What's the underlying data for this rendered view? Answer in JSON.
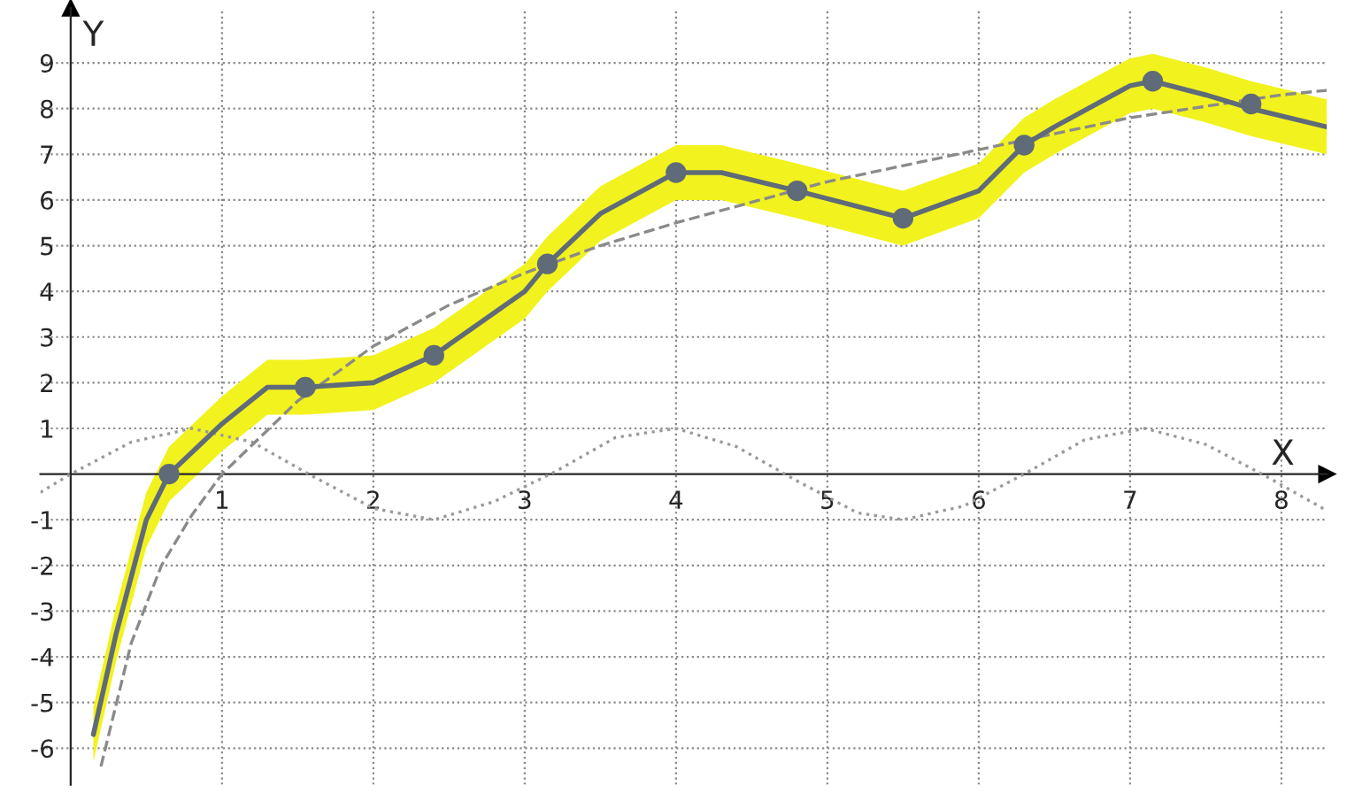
{
  "chart_data": {
    "type": "line",
    "xlabel": "X",
    "ylabel": "Y",
    "xlim": [
      -0.2,
      8.3
    ],
    "ylim": [
      -6.8,
      10.2
    ],
    "xticks": [
      1,
      2,
      3,
      4,
      5,
      6,
      7,
      8
    ],
    "yticks": [
      -6,
      -5,
      -4,
      -3,
      -2,
      -1,
      1,
      2,
      3,
      4,
      5,
      6,
      7,
      8,
      9
    ],
    "grid": true,
    "legend": false,
    "series": [
      {
        "color": "#9a9a9a",
        "line_style": "dotted",
        "x": [
          -0.2,
          0,
          0.4,
          0.8,
          1.2,
          1.6,
          2,
          2.4,
          2.8,
          3.2,
          3.6,
          4,
          4.4,
          4.8,
          5.2,
          5.5,
          5.9,
          6.3,
          6.7,
          7.1,
          7.5,
          7.9,
          8.3
        ],
        "values": [
          -0.4,
          0,
          0.7,
          1,
          0.7,
          -0.05,
          -0.75,
          -1,
          -0.6,
          0.05,
          0.8,
          1,
          0.6,
          -0.15,
          -0.85,
          -1,
          -0.7,
          0,
          0.75,
          1,
          0.65,
          -0.05,
          -0.8
        ]
      },
      {
        "color": "#8a8a8a",
        "line_style": "dashed",
        "x": [
          0.2,
          0.4,
          0.6,
          0.8,
          1,
          1.5,
          2,
          2.5,
          3,
          3.5,
          4,
          5,
          6,
          7,
          8,
          8.3
        ],
        "values": [
          -6.4,
          -3.7,
          -2,
          -0.9,
          0,
          1.6,
          2.8,
          3.7,
          4.4,
          5,
          5.5,
          6.4,
          7.1,
          7.8,
          8.3,
          8.4
        ]
      },
      {
        "color": "#5f6b78",
        "line_style": "solid",
        "x": [
          0.15,
          0.3,
          0.5,
          0.65,
          1,
          1.3,
          1.55,
          2,
          2.4,
          3,
          3.15,
          3.5,
          4,
          4.3,
          4.8,
          5.5,
          6,
          6.3,
          6.5,
          7,
          7.15,
          7.5,
          7.8,
          8.3
        ],
        "values": [
          -5.7,
          -3.5,
          -1,
          0,
          1.1,
          1.9,
          1.9,
          2,
          2.6,
          4,
          4.6,
          5.7,
          6.6,
          6.6,
          6.2,
          5.6,
          6.2,
          7.2,
          7.6,
          8.5,
          8.6,
          8.3,
          8,
          7.6
        ],
        "lower": [
          -6.3,
          -4.1,
          -1.6,
          -0.6,
          0.5,
          1.3,
          1.3,
          1.4,
          2.0,
          3.4,
          4.0,
          5.1,
          6.0,
          6.0,
          5.6,
          5.0,
          5.6,
          6.6,
          7.0,
          7.9,
          8.0,
          7.7,
          7.4,
          7.0
        ],
        "upper": [
          -5.1,
          -2.9,
          -0.4,
          0.6,
          1.7,
          2.5,
          2.5,
          2.6,
          3.2,
          4.6,
          5.2,
          6.3,
          7.2,
          7.2,
          6.8,
          6.2,
          6.8,
          7.8,
          8.2,
          9.1,
          9.2,
          8.9,
          8.6,
          8.2
        ]
      },
      {
        "type": "scatter",
        "color": "#5f6b78",
        "marker": "circle",
        "x": [
          0.65,
          1.55,
          2.4,
          3.15,
          4,
          4.8,
          5.5,
          6.3,
          7.15,
          7.8
        ],
        "values": [
          0,
          1.9,
          2.6,
          4.6,
          6.6,
          6.2,
          5.6,
          7.2,
          8.6,
          8.1
        ]
      }
    ]
  }
}
